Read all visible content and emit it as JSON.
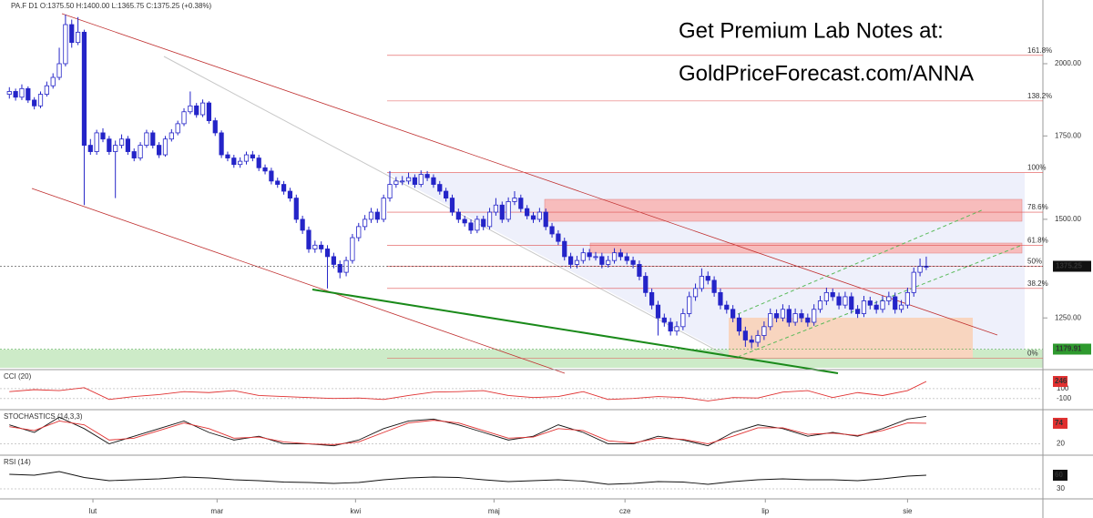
{
  "chart_data": {
    "type": "candlestick",
    "header": "PA.F D1 O:1375.50 H:1400.00 L:1365.75 C:1375.25 (+0.38%)",
    "annotations": [
      "Get Premium Lab Notes at:",
      "GoldPriceForecast.com/ANNA"
    ],
    "x": [
      0,
      1,
      2,
      3,
      4,
      5,
      6,
      7,
      8,
      9,
      10,
      11,
      12,
      13,
      14,
      15,
      16,
      17,
      18,
      19,
      20,
      21,
      22,
      23,
      24,
      25,
      26,
      27,
      28,
      29,
      30,
      31,
      32,
      33,
      34,
      35,
      36,
      37,
      38,
      39,
      40,
      41,
      42,
      43,
      44,
      45,
      46,
      47,
      48,
      49,
      50,
      51,
      52,
      53,
      54,
      55,
      56,
      57,
      58,
      59,
      60,
      61,
      62,
      63,
      64,
      65,
      66,
      67,
      68,
      69,
      70,
      71,
      72,
      73,
      74,
      75,
      76,
      77,
      78,
      79,
      80,
      81,
      82,
      83,
      84,
      85,
      86,
      87,
      88,
      89,
      90,
      91,
      92,
      93,
      94,
      95,
      96,
      97,
      98,
      99,
      100,
      101,
      102,
      103,
      104,
      105,
      106,
      107,
      108,
      109,
      110,
      111,
      112,
      113,
      114,
      115,
      116,
      117,
      118,
      119,
      120,
      121,
      122,
      123,
      124,
      125,
      126,
      127,
      128,
      129,
      130,
      131,
      132,
      133,
      134,
      135,
      136,
      137,
      138,
      139,
      140,
      141,
      142,
      143,
      144,
      145,
      146,
      147
    ],
    "open": [
      1890,
      1900,
      1880,
      1910,
      1870,
      1850,
      1890,
      1920,
      1950,
      2000,
      2150,
      2080,
      2120,
      1720,
      1700,
      1760,
      1740,
      1700,
      1720,
      1740,
      1700,
      1680,
      1720,
      1760,
      1720,
      1690,
      1740,
      1760,
      1790,
      1830,
      1850,
      1820,
      1860,
      1800,
      1760,
      1690,
      1680,
      1660,
      1670,
      1690,
      1680,
      1650,
      1640,
      1610,
      1600,
      1580,
      1560,
      1500,
      1470,
      1420,
      1430,
      1420,
      1400,
      1380,
      1360,
      1390,
      1450,
      1480,
      1500,
      1520,
      1500,
      1560,
      1600,
      1610,
      1610,
      1620,
      1600,
      1630,
      1620,
      1600,
      1580,
      1560,
      1520,
      1500,
      1490,
      1470,
      1500,
      1480,
      1520,
      1540,
      1500,
      1550,
      1560,
      1530,
      1510,
      1500,
      1520,
      1480,
      1460,
      1440,
      1400,
      1380,
      1390,
      1410,
      1400,
      1400,
      1380,
      1390,
      1410,
      1400,
      1390,
      1380,
      1350,
      1310,
      1280,
      1250,
      1240,
      1220,
      1230,
      1260,
      1300,
      1320,
      1350,
      1340,
      1310,
      1280,
      1270,
      1250,
      1220,
      1200,
      1195,
      1210,
      1230,
      1260,
      1250,
      1270,
      1240,
      1260,
      1250,
      1240,
      1270,
      1290,
      1310,
      1300,
      1280,
      1300,
      1270,
      1260,
      1290,
      1280,
      1270,
      1290,
      1300,
      1270,
      1280,
      1310,
      1360,
      1375.5
    ],
    "high": [
      1915,
      1910,
      1925,
      1918,
      1880,
      1900,
      1935,
      1965,
      2060,
      2190,
      2170,
      2180,
      2130,
      1740,
      1770,
      1775,
      1750,
      1735,
      1755,
      1750,
      1710,
      1730,
      1770,
      1768,
      1730,
      1750,
      1772,
      1800,
      1842,
      1900,
      1860,
      1872,
      1866,
      1810,
      1768,
      1700,
      1690,
      1682,
      1700,
      1702,
      1690,
      1660,
      1650,
      1620,
      1610,
      1590,
      1570,
      1510,
      1480,
      1442,
      1440,
      1430,
      1410,
      1390,
      1400,
      1460,
      1490,
      1512,
      1532,
      1530,
      1570,
      1640,
      1622,
      1625,
      1635,
      1630,
      1642,
      1640,
      1630,
      1610,
      1590,
      1570,
      1530,
      1510,
      1500,
      1510,
      1510,
      1532,
      1560,
      1550,
      1562,
      1580,
      1570,
      1540,
      1520,
      1532,
      1530,
      1490,
      1470,
      1450,
      1410,
      1402,
      1422,
      1420,
      1412,
      1410,
      1402,
      1422,
      1420,
      1410,
      1400,
      1390,
      1360,
      1320,
      1290,
      1260,
      1250,
      1242,
      1272,
      1312,
      1332,
      1370,
      1362,
      1350,
      1320,
      1290,
      1280,
      1260,
      1230,
      1210,
      1222,
      1242,
      1272,
      1270,
      1282,
      1280,
      1272,
      1270,
      1260,
      1282,
      1302,
      1322,
      1320,
      1310,
      1312,
      1310,
      1280,
      1302,
      1300,
      1290,
      1302,
      1312,
      1310,
      1292,
      1322,
      1372,
      1395,
      1400
    ],
    "low": [
      1875,
      1868,
      1870,
      1860,
      1838,
      1842,
      1882,
      1910,
      1940,
      1990,
      2060,
      2070,
      1540,
      1690,
      1690,
      1730,
      1690,
      1560,
      1710,
      1690,
      1670,
      1672,
      1712,
      1710,
      1680,
      1684,
      1732,
      1752,
      1782,
      1822,
      1810,
      1812,
      1790,
      1750,
      1680,
      1670,
      1650,
      1650,
      1660,
      1670,
      1640,
      1630,
      1600,
      1590,
      1570,
      1550,
      1490,
      1460,
      1410,
      1410,
      1410,
      1320,
      1370,
      1345,
      1350,
      1382,
      1440,
      1470,
      1490,
      1490,
      1492,
      1550,
      1590,
      1598,
      1600,
      1590,
      1592,
      1610,
      1590,
      1570,
      1550,
      1510,
      1490,
      1480,
      1460,
      1462,
      1470,
      1472,
      1510,
      1490,
      1492,
      1540,
      1520,
      1500,
      1490,
      1492,
      1470,
      1450,
      1430,
      1390,
      1370,
      1370,
      1382,
      1390,
      1390,
      1370,
      1372,
      1382,
      1390,
      1380,
      1370,
      1340,
      1300,
      1270,
      1210,
      1230,
      1210,
      1210,
      1222,
      1252,
      1290,
      1312,
      1330,
      1300,
      1270,
      1260,
      1240,
      1210,
      1185,
      1182,
      1185,
      1200,
      1222,
      1240,
      1242,
      1230,
      1232,
      1240,
      1230,
      1232,
      1262,
      1280,
      1290,
      1270,
      1272,
      1260,
      1250,
      1252,
      1270,
      1260,
      1262,
      1280,
      1260,
      1262,
      1272,
      1300,
      1350,
      1365.75
    ],
    "close": [
      1900,
      1880,
      1910,
      1870,
      1850,
      1890,
      1920,
      1950,
      2000,
      2150,
      2080,
      2120,
      1720,
      1700,
      1760,
      1740,
      1700,
      1720,
      1740,
      1700,
      1680,
      1720,
      1760,
      1720,
      1690,
      1740,
      1760,
      1790,
      1830,
      1850,
      1820,
      1860,
      1800,
      1760,
      1690,
      1680,
      1660,
      1670,
      1690,
      1680,
      1650,
      1640,
      1610,
      1600,
      1580,
      1560,
      1500,
      1470,
      1420,
      1430,
      1420,
      1400,
      1380,
      1360,
      1390,
      1450,
      1480,
      1500,
      1520,
      1500,
      1560,
      1600,
      1610,
      1610,
      1620,
      1600,
      1630,
      1620,
      1600,
      1580,
      1560,
      1520,
      1500,
      1490,
      1470,
      1500,
      1480,
      1520,
      1540,
      1500,
      1550,
      1560,
      1530,
      1510,
      1500,
      1520,
      1480,
      1460,
      1440,
      1400,
      1380,
      1390,
      1410,
      1400,
      1400,
      1380,
      1390,
      1410,
      1400,
      1390,
      1380,
      1350,
      1310,
      1280,
      1250,
      1240,
      1220,
      1230,
      1260,
      1300,
      1320,
      1350,
      1340,
      1310,
      1280,
      1270,
      1250,
      1220,
      1200,
      1195,
      1210,
      1230,
      1260,
      1250,
      1270,
      1240,
      1260,
      1250,
      1240,
      1270,
      1290,
      1310,
      1300,
      1280,
      1300,
      1270,
      1260,
      1290,
      1280,
      1270,
      1290,
      1300,
      1270,
      1280,
      1310,
      1360,
      1375.5,
      1375.25
    ],
    "xlim": [
      -1.5,
      165.7
    ],
    "xticks": [
      {
        "value": 13.4,
        "label": "lut"
      },
      {
        "value": 33.3,
        "label": "mar"
      },
      {
        "value": 55.5,
        "label": "kwi"
      },
      {
        "value": 77.7,
        "label": "maj"
      },
      {
        "value": 98.7,
        "label": "cze"
      },
      {
        "value": 121.2,
        "label": "lip"
      },
      {
        "value": 144,
        "label": "sie"
      }
    ],
    "ylim": [
      1138,
      2250
    ],
    "log_scale": true,
    "yticks": [
      {
        "value": 2000,
        "label": "2000.00"
      },
      {
        "value": 1750,
        "label": "1750.00"
      },
      {
        "value": 1500,
        "label": "1500.00"
      },
      {
        "value": 1250,
        "label": "1250.00"
      }
    ],
    "color_up": "#ffffff",
    "color_down": "#2424c8",
    "fibonacci": [
      {
        "value": 2031,
        "label": "161.8%"
      },
      {
        "value": 1867,
        "label": "138.2%"
      },
      {
        "value": 1636,
        "label": "100%"
      },
      {
        "value": 1520,
        "label": "78.6%"
      },
      {
        "value": 1430,
        "label": "61.8%"
      },
      {
        "value": 1375,
        "label": "50%"
      },
      {
        "value": 1320,
        "label": "38.2%"
      },
      {
        "value": 1160,
        "label": "0%"
      }
    ],
    "fib_color": "#e05050",
    "price_labels": [
      {
        "value": 1375.25,
        "label": "1375.25",
        "color": "#111111"
      },
      {
        "value": 1179.91,
        "label": "1179.91",
        "color": "#2e9a2e"
      }
    ],
    "indicators": [
      {
        "type": "line",
        "title": "CCI (20)",
        "ylim": [
          -290,
          450
        ],
        "yticks": [
          100,
          -100
        ],
        "x": [
          0,
          4,
          8,
          12,
          16,
          20,
          24,
          28,
          32,
          36,
          40,
          44,
          48,
          52,
          56,
          60,
          64,
          68,
          72,
          76,
          80,
          84,
          88,
          92,
          96,
          100,
          104,
          108,
          112,
          116,
          120,
          124,
          128,
          132,
          136,
          140,
          144,
          147
        ],
        "series": [
          {
            "color": "#e03030",
            "values": [
              40,
              80,
              60,
              120,
              -120,
              -60,
              -20,
              40,
              20,
              60,
              -40,
              -60,
              -80,
              -100,
              -90,
              -120,
              -40,
              30,
              40,
              60,
              -40,
              -80,
              -60,
              40,
              -120,
              -100,
              -60,
              -80,
              -150,
              -80,
              -90,
              30,
              60,
              -80,
              20,
              -40,
              60,
              246
            ]
          }
        ]
      },
      {
        "type": "line",
        "title": "STOCHASTICS (14,3,3)",
        "ylim": [
          -5,
          105
        ],
        "yticks": [
          20
        ],
        "x": [
          0,
          4,
          8,
          12,
          16,
          20,
          24,
          28,
          32,
          36,
          40,
          44,
          48,
          52,
          56,
          60,
          64,
          68,
          72,
          76,
          80,
          84,
          88,
          92,
          96,
          100,
          104,
          108,
          112,
          116,
          120,
          124,
          128,
          132,
          136,
          140,
          144,
          147
        ],
        "series": [
          {
            "color": "#111111",
            "values": [
              70,
              50,
              90,
              60,
              20,
              40,
              60,
              80,
              50,
              30,
              40,
              20,
              20,
              15,
              30,
              60,
              80,
              85,
              70,
              50,
              30,
              40,
              70,
              50,
              20,
              20,
              40,
              30,
              15,
              50,
              70,
              60,
              40,
              50,
              40,
              60,
              85,
              92
            ]
          },
          {
            "color": "#e03030",
            "values": [
              65,
              55,
              80,
              70,
              30,
              35,
              55,
              75,
              60,
              35,
              38,
              25,
              20,
              18,
              25,
              50,
              75,
              82,
              75,
              55,
              35,
              38,
              60,
              55,
              28,
              22,
              35,
              32,
              20,
              40,
              62,
              62,
              45,
              48,
              42,
              55,
              75,
              74
            ]
          }
        ]
      },
      {
        "type": "line",
        "title": "RSI (14)",
        "ylim": [
          14,
          100
        ],
        "yticks": [
          30
        ],
        "x": [
          0,
          4,
          8,
          12,
          16,
          20,
          24,
          28,
          32,
          36,
          40,
          44,
          48,
          52,
          56,
          60,
          64,
          68,
          72,
          76,
          80,
          84,
          88,
          92,
          96,
          100,
          104,
          108,
          112,
          116,
          120,
          124,
          128,
          132,
          136,
          140,
          144,
          147
        ],
        "series": [
          {
            "color": "#111111",
            "values": [
              62,
              60,
              68,
              55,
              48,
              50,
              52,
              56,
              54,
              50,
              48,
              45,
              44,
              42,
              44,
              50,
              54,
              56,
              55,
              50,
              46,
              48,
              50,
              47,
              40,
              42,
              46,
              45,
              40,
              46,
              50,
              52,
              50,
              50,
              48,
              52,
              58,
              60
            ]
          }
        ]
      }
    ]
  }
}
